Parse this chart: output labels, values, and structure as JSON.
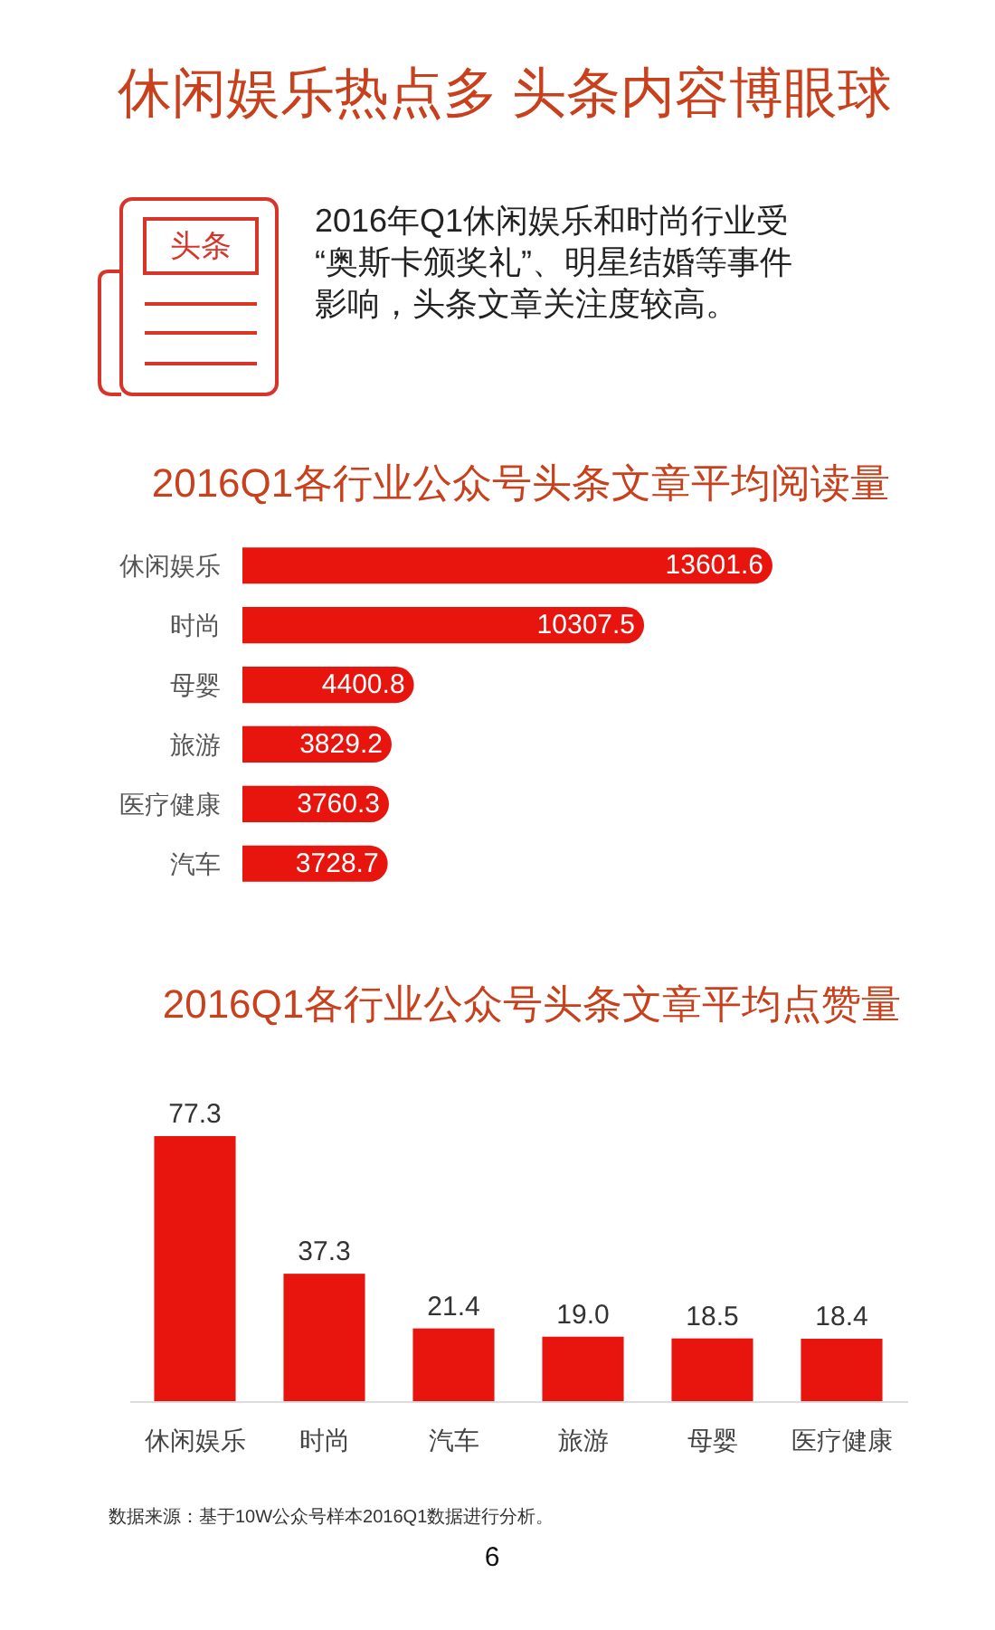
{
  "chart_data": [
    {
      "type": "other",
      "title": "休闲娱乐热点多 头条内容博眼球",
      "annotations": [
        "头条",
        "2016年Q1休闲娱乐和时尚行业受“奥斯卡颁奖礼”、明星结婚等事件影响，头条文章关注度较高。"
      ]
    },
    {
      "type": "bar",
      "orientation": "horizontal",
      "title": "2016Q1各行业公众号头条文章平均阅读量",
      "categories": [
        "休闲娱乐",
        "时尚",
        "母婴",
        "旅游",
        "医疗健康",
        "汽车"
      ],
      "values": [
        13601.6,
        10307.5,
        4400.8,
        3829.2,
        3760.3,
        3728.7
      ],
      "color": "#e8150f",
      "data_labels": true
    },
    {
      "type": "bar",
      "title": "2016Q1各行业公众号头条文章平均点赞量",
      "categories": [
        "休闲娱乐",
        "时尚",
        "汽车",
        "旅游",
        "母婴",
        "医疗健康"
      ],
      "values": [
        77.3,
        37.3,
        21.4,
        19.0,
        18.5,
        18.4
      ],
      "value_labels": [
        "77.3",
        "37.3",
        "21.4",
        "19.0",
        "18.5",
        "18.4"
      ],
      "color": "#e8150f",
      "annotations": [
        "数据来源：基于10W公众号样本2016Q1数据进行分析。",
        "6"
      ]
    }
  ]
}
